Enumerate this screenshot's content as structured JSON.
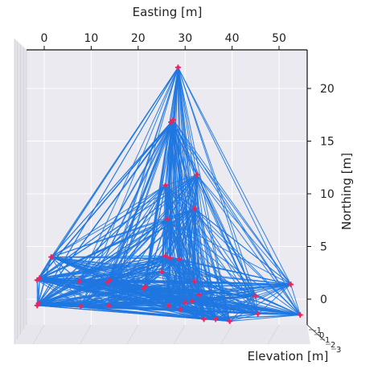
{
  "chart_data": {
    "type": "scatter",
    "projection": "3d",
    "xlabel": "Easting [m]",
    "ylabel": "Northing [m]",
    "zlabel": "Elevation [m]",
    "xlim": [
      -4,
      56
    ],
    "ylim": [
      -3,
      23
    ],
    "x_ticks": [
      0,
      10,
      20,
      30,
      40,
      50
    ],
    "y_ticks": [
      0,
      5,
      10,
      15,
      20
    ],
    "z_ticks": [
      -1,
      0,
      1,
      2,
      3
    ],
    "grid": true,
    "colors": {
      "edges": "#1f77e0",
      "points": "#e8265e",
      "pane": "#eaeaf0",
      "grid": "#ffffff"
    },
    "points": [
      {
        "x": 28.5,
        "y": 22.0
      },
      {
        "x": 27.5,
        "y": 17.0
      },
      {
        "x": 27.0,
        "y": 16.8
      },
      {
        "x": 32.5,
        "y": 11.8
      },
      {
        "x": 25.8,
        "y": 10.8
      },
      {
        "x": 32.0,
        "y": 8.6
      },
      {
        "x": 26.2,
        "y": 7.6
      },
      {
        "x": 1.5,
        "y": 4.0
      },
      {
        "x": 25.8,
        "y": 4.1
      },
      {
        "x": 26.8,
        "y": 3.9
      },
      {
        "x": 28.8,
        "y": 3.8
      },
      {
        "x": 25.0,
        "y": 2.6
      },
      {
        "x": -1.5,
        "y": 1.8
      },
      {
        "x": -1.0,
        "y": 2.0
      },
      {
        "x": 7.5,
        "y": 1.7
      },
      {
        "x": 14.0,
        "y": 1.8
      },
      {
        "x": 13.5,
        "y": 1.6
      },
      {
        "x": 32.0,
        "y": 1.7
      },
      {
        "x": 21.5,
        "y": 1.2
      },
      {
        "x": 21.2,
        "y": 1.0
      },
      {
        "x": 52.5,
        "y": 1.4
      },
      {
        "x": 33.0,
        "y": 0.4
      },
      {
        "x": 45.0,
        "y": 0.3
      },
      {
        "x": 30.0,
        "y": -0.3
      },
      {
        "x": 31.5,
        "y": -0.2
      },
      {
        "x": -1.2,
        "y": -0.4
      },
      {
        "x": -1.5,
        "y": -0.6
      },
      {
        "x": 7.8,
        "y": -0.7
      },
      {
        "x": 13.8,
        "y": -0.6
      },
      {
        "x": 26.5,
        "y": -0.6
      },
      {
        "x": 29.0,
        "y": -1.0
      },
      {
        "x": 45.5,
        "y": -1.4
      },
      {
        "x": 54.5,
        "y": -1.5
      },
      {
        "x": 34.0,
        "y": -1.9
      },
      {
        "x": 36.5,
        "y": -1.9
      },
      {
        "x": 39.5,
        "y": -2.1
      }
    ]
  }
}
